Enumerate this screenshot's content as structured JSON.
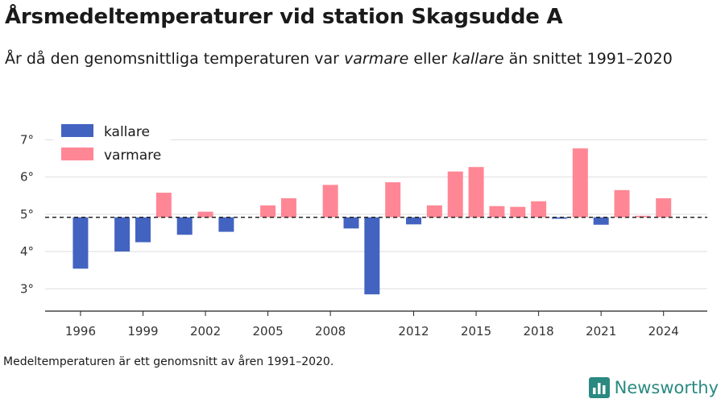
{
  "header": {
    "title": "Årsmedeltemperaturer vid station Skagsudde A",
    "subtitle_pre": "År då den genomsnittliga temperaturen var ",
    "subtitle_warm": "varmare",
    "subtitle_mid": " eller ",
    "subtitle_cold": "kallare",
    "subtitle_post": " än snittet 1991–2020"
  },
  "footnote": "Medeltemperaturen är ett genomsnitt av åren 1991–2020.",
  "brand": {
    "name": "Newsworthy",
    "icon": "newsworthy-logo-icon",
    "color": "#2a8a82"
  },
  "colors": {
    "cold": "#4363c0",
    "warm": "#ff8795"
  },
  "chart_data": {
    "type": "bar",
    "baseline": 4.92,
    "ylim": [
      2.4,
      7.4
    ],
    "yticks": [
      3,
      4,
      5,
      6,
      7
    ],
    "ytick_labels": [
      "3°",
      "4°",
      "5°",
      "6°",
      "7°"
    ],
    "xlim": [
      1994.3,
      2026.1
    ],
    "xticks": [
      1996,
      1999,
      2002,
      2005,
      2008,
      2012,
      2015,
      2018,
      2021,
      2024
    ],
    "xtick_labels": [
      "1996",
      "1999",
      "2002",
      "2005",
      "2008",
      "2012",
      "2015",
      "2018",
      "2021",
      "2024"
    ],
    "grid": true,
    "legend_position": "top-left",
    "series": [
      {
        "name": "kallare",
        "color": "#4363c0"
      },
      {
        "name": "varmare",
        "color": "#ff8795"
      }
    ],
    "years": [
      1996,
      1998,
      1999,
      2000,
      2001,
      2002,
      2003,
      2005,
      2006,
      2008,
      2009,
      2010,
      2011,
      2012,
      2013,
      2014,
      2015,
      2016,
      2017,
      2018,
      2019,
      2020,
      2021,
      2022,
      2023,
      2024
    ],
    "values": [
      3.54,
      4.0,
      4.25,
      5.58,
      4.45,
      5.07,
      4.53,
      5.24,
      5.43,
      5.79,
      4.62,
      2.85,
      5.86,
      4.73,
      5.24,
      6.15,
      6.27,
      5.22,
      5.2,
      5.35,
      4.88,
      6.77,
      4.72,
      5.65,
      4.96,
      5.43
    ]
  }
}
